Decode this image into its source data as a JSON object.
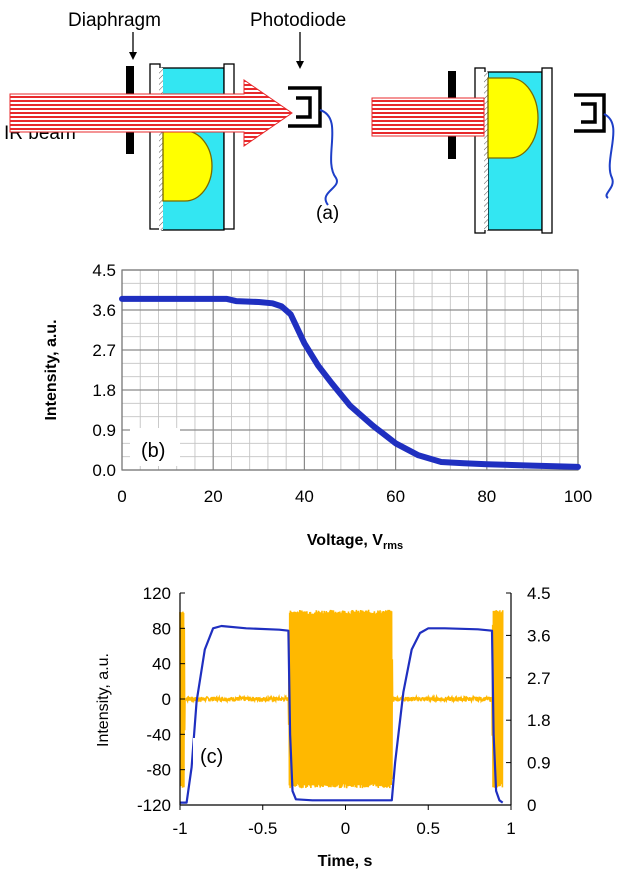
{
  "panel_a": {
    "label_diaphragm": "Diaphragm",
    "label_photodiode": "Photodiode",
    "label_ir_beam": "IR beam",
    "panel_label": "(a)",
    "colors": {
      "beam_stripes": "#e8292b",
      "cell_fill": "#33e6f2",
      "droplet_fill": "#ffff00",
      "droplet_stroke": "#7a6a00",
      "wire": "#1e3fc8",
      "diaphragm": "#000000"
    },
    "icons": [
      "diaphragm-icon",
      "photodiode-icon",
      "ir-beam-arrow-icon",
      "cell-icon",
      "droplet-icon",
      "wire-icon"
    ]
  },
  "chart_data": [
    {
      "type": "line",
      "panel_label": "(b)",
      "title": "",
      "xlabel": "Voltage, V",
      "xlabel_sub": "rms",
      "ylabel": "Intensity, a.u.",
      "xlim": [
        0,
        100
      ],
      "ylim": [
        0,
        4.5
      ],
      "x_ticks": [
        0,
        20,
        40,
        60,
        80,
        100
      ],
      "x_tick_labels": [
        "0",
        "20",
        "40",
        "60",
        "80",
        "100"
      ],
      "y_ticks": [
        0,
        0.9,
        1.8,
        2.7,
        3.6,
        4.5
      ],
      "y_tick_labels": [
        "0.0",
        "0.9",
        "1.8",
        "2.7",
        "3.6",
        "4.5"
      ],
      "grid": true,
      "minor_grid_x_step": 4,
      "minor_grid_y_step": 0.3,
      "series": [
        {
          "color": "#1f2fc0",
          "x": [
            0,
            10,
            20,
            23,
            25,
            30,
            33,
            35,
            37,
            40,
            43,
            46,
            50,
            55,
            60,
            65,
            70,
            75,
            80,
            90,
            100
          ],
          "y": [
            3.85,
            3.85,
            3.85,
            3.85,
            3.8,
            3.78,
            3.75,
            3.68,
            3.5,
            2.85,
            2.35,
            1.95,
            1.45,
            1.0,
            0.6,
            0.33,
            0.18,
            0.15,
            0.13,
            0.1,
            0.07
          ]
        }
      ]
    },
    {
      "type": "line",
      "panel_label": "(c)",
      "title": "",
      "xlabel": "Time, s",
      "ylabel": "Intensity, a.u.",
      "xlim": [
        -1,
        1
      ],
      "ylim_left": [
        -120,
        120
      ],
      "ylim_right": [
        0,
        4.5
      ],
      "x_ticks": [
        -1,
        -0.5,
        0,
        0.5,
        1
      ],
      "x_tick_labels": [
        "-1",
        "-0.5",
        "0",
        "0.5",
        "1"
      ],
      "y_left_ticks": [
        -120,
        -80,
        -40,
        0,
        40,
        80,
        120
      ],
      "y_left_tick_labels": [
        "-120",
        "-80",
        "-40",
        "0",
        "40",
        "80",
        "120"
      ],
      "y_right_ticks": [
        0,
        0.9,
        1.8,
        2.7,
        3.6,
        4.5
      ],
      "y_right_tick_labels": [
        "0",
        "0.9",
        "1.8",
        "2.7",
        "3.6",
        "4.5"
      ],
      "grid": false,
      "series": [
        {
          "axis": "left",
          "color": "#ffb800",
          "kind": "voltage-burst",
          "x": [
            -1,
            -0.975,
            -0.97,
            -0.345,
            -0.34,
            0.28,
            0.285,
            0.885,
            0.89,
            0.95
          ],
          "amplitude": [
            100,
            100,
            0,
            0,
            100,
            100,
            0,
            0,
            100,
            100
          ]
        },
        {
          "axis": "right",
          "color": "#1f2fc0",
          "x": [
            -1,
            -0.96,
            -0.93,
            -0.9,
            -0.85,
            -0.8,
            -0.75,
            -0.6,
            -0.4,
            -0.345,
            -0.335,
            -0.32,
            -0.3,
            -0.2,
            0,
            0.2,
            0.28,
            0.3,
            0.35,
            0.4,
            0.45,
            0.5,
            0.6,
            0.8,
            0.885,
            0.895,
            0.91,
            0.93,
            0.95
          ],
          "y": [
            0.05,
            0.05,
            0.8,
            2.2,
            3.3,
            3.75,
            3.8,
            3.75,
            3.72,
            3.7,
            1.5,
            0.3,
            0.12,
            0.1,
            0.1,
            0.1,
            0.1,
            0.9,
            2.4,
            3.3,
            3.65,
            3.75,
            3.75,
            3.73,
            3.7,
            1.5,
            0.3,
            0.1,
            0.05
          ]
        }
      ]
    }
  ]
}
